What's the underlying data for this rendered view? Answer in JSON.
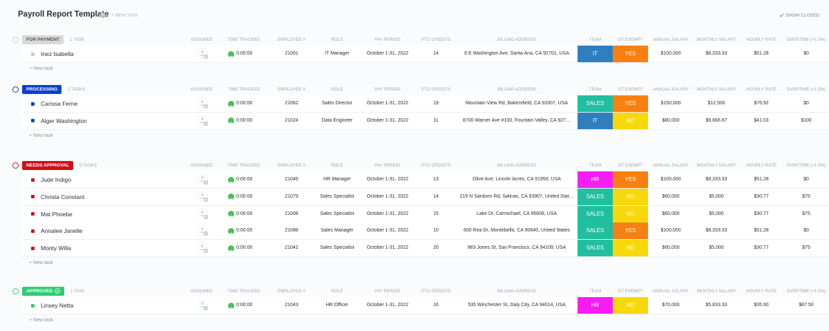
{
  "header": {
    "title": "Payroll Report Template",
    "new_task": "+ NEW TASK",
    "show_closed": "SHOW CLOSED"
  },
  "columns": [
    "ASSIGNEE",
    "TIME TRACKED",
    "EMPLOYEE #",
    "ROLE",
    "PAY PERIOD",
    "PTO CREDITS",
    "BILLING ADDRESS",
    "TEAM",
    "OT EXEMPT",
    "ANNUAL SALARY",
    "MONTHLY SALARY",
    "HOURLY RATE",
    "OVERTIME (+1.5%)"
  ],
  "new_task_row": "+ New task",
  "team_colors": {
    "IT": "#2f7fbf",
    "SALES": "#1fbf9f",
    "HR": "#f51df2"
  },
  "ot_colors": {
    "YES": "#f88010",
    "NO": "#f7d80a"
  },
  "groups": [
    {
      "status": "FOR PAYMENT",
      "count": "1 TASK",
      "pill_color": "#d9d9d9",
      "pill_text": "#555555",
      "dot_color": "#cccccc",
      "rows": [
        {
          "name": "Inez Isabella",
          "time": "0:00:00",
          "employee": 21061,
          "role": "IT Manager",
          "pay_period": "October 1-31, 2022",
          "pto": 14,
          "address": "6 E Washington Ave, Santa Ana, CA 92701, USA",
          "team": "IT",
          "ot_exempt": "YES",
          "annual": "$100,000",
          "monthly": "$8,333.33",
          "hourly": "$51.28",
          "overtime": "$0"
        }
      ]
    },
    {
      "status": "PROCESSING",
      "count": "2 TASKS",
      "pill_color": "#0b3fce",
      "pill_text": "#ffffff",
      "dot_color": "#0b3fce",
      "rows": [
        {
          "name": "Carissa Ferne",
          "time": "0:00:00",
          "employee": 21062,
          "role": "Sales Director",
          "pay_period": "October 1-31, 2022",
          "pto": 19,
          "address": "Mountain View Rd, Bakersfield, CA 93307, USA",
          "team": "SALES",
          "ot_exempt": "YES",
          "annual": "$150,000",
          "monthly": "$12,500",
          "hourly": "$76.92",
          "overtime": "$0"
        },
        {
          "name": "Alger Washington",
          "time": "0:00:00",
          "employee": 21024,
          "role": "Data Engineer",
          "pay_period": "October 1-31, 2022",
          "pto": 11,
          "address": "8700 Warner Ave #100, Fountain Valley, CA 927…",
          "team": "IT",
          "ot_exempt": "NO",
          "annual": "$80,000",
          "monthly": "$6,666.67",
          "hourly": "$41.03",
          "overtime": "$100"
        }
      ]
    },
    {
      "status": "NEEDS APPROVAL",
      "count": "5 TASKS",
      "pill_color": "#d0101c",
      "pill_text": "#ffffff",
      "dot_color": "#d0101c",
      "rows": [
        {
          "name": "Jude Indigo",
          "time": "0:00:00",
          "employee": 21046,
          "role": "HR Manager",
          "pay_period": "October 1-31, 2022",
          "pto": 13,
          "address": "Olive Ave, Lincoln Acres, CA 91950, USA",
          "team": "HR",
          "ot_exempt": "YES",
          "annual": "$100,000",
          "monthly": "$8,333.33",
          "hourly": "$51.28",
          "overtime": "$0"
        },
        {
          "name": "Christa Constant",
          "time": "0:00:00",
          "employee": 21079,
          "role": "Sales Specialist",
          "pay_period": "October 1-31, 2022",
          "pto": 14,
          "address": "219 N Sanborn Rd, Salinas, CA 93907, United Stat…",
          "team": "SALES",
          "ot_exempt": "NO",
          "annual": "$60,000",
          "monthly": "$5,000",
          "hourly": "$30.77",
          "overtime": "$75"
        },
        {
          "name": "Mat Phoebe",
          "time": "0:00:00",
          "employee": 21008,
          "role": "Sales Specialist",
          "pay_period": "October 1-31, 2022",
          "pto": 15,
          "address": "Lake Dr, Carmichael, CA 95608, USA",
          "team": "SALES",
          "ot_exempt": "NO",
          "annual": "$60,000",
          "monthly": "$5,000",
          "hourly": "$30.77",
          "overtime": "$75"
        },
        {
          "name": "Annalee Janelle",
          "time": "0:00:00",
          "employee": 21088,
          "role": "Sales Manager",
          "pay_period": "October 1-31, 2022",
          "pto": 10,
          "address": "600 Rea Dr, Montebello, CA 90640, United States",
          "team": "SALES",
          "ot_exempt": "YES",
          "annual": "$100,000",
          "monthly": "$8,333.33",
          "hourly": "$51.28",
          "overtime": "$0"
        },
        {
          "name": "Monty Willa",
          "time": "0:00:00",
          "employee": 21042,
          "role": "Sales Specialist",
          "pay_period": "October 1-31, 2022",
          "pto": 20,
          "address": "983 Jones St, San Francisco, CA 94109, USA",
          "team": "SALES",
          "ot_exempt": "NO",
          "annual": "$60,000",
          "monthly": "$5,000",
          "hourly": "$30.77",
          "overtime": "$75"
        }
      ]
    },
    {
      "status": "APPROVED",
      "count": "1 TASK",
      "pill_color": "#2ecc71",
      "pill_text": "#ffffff",
      "dot_color": "#2ecc71",
      "rows": [
        {
          "name": "Linsey Netta",
          "time": "0:00:00",
          "employee": 21043,
          "role": "HR Officer",
          "pay_period": "October 1-31, 2022",
          "pto": 16,
          "address": "535 Winchester St, Daly City, CA 94014, USA",
          "team": "HR",
          "ot_exempt": "NO",
          "annual": "$70,000",
          "monthly": "$5,833.33",
          "hourly": "$35.90",
          "overtime": "$87.50"
        }
      ]
    }
  ]
}
